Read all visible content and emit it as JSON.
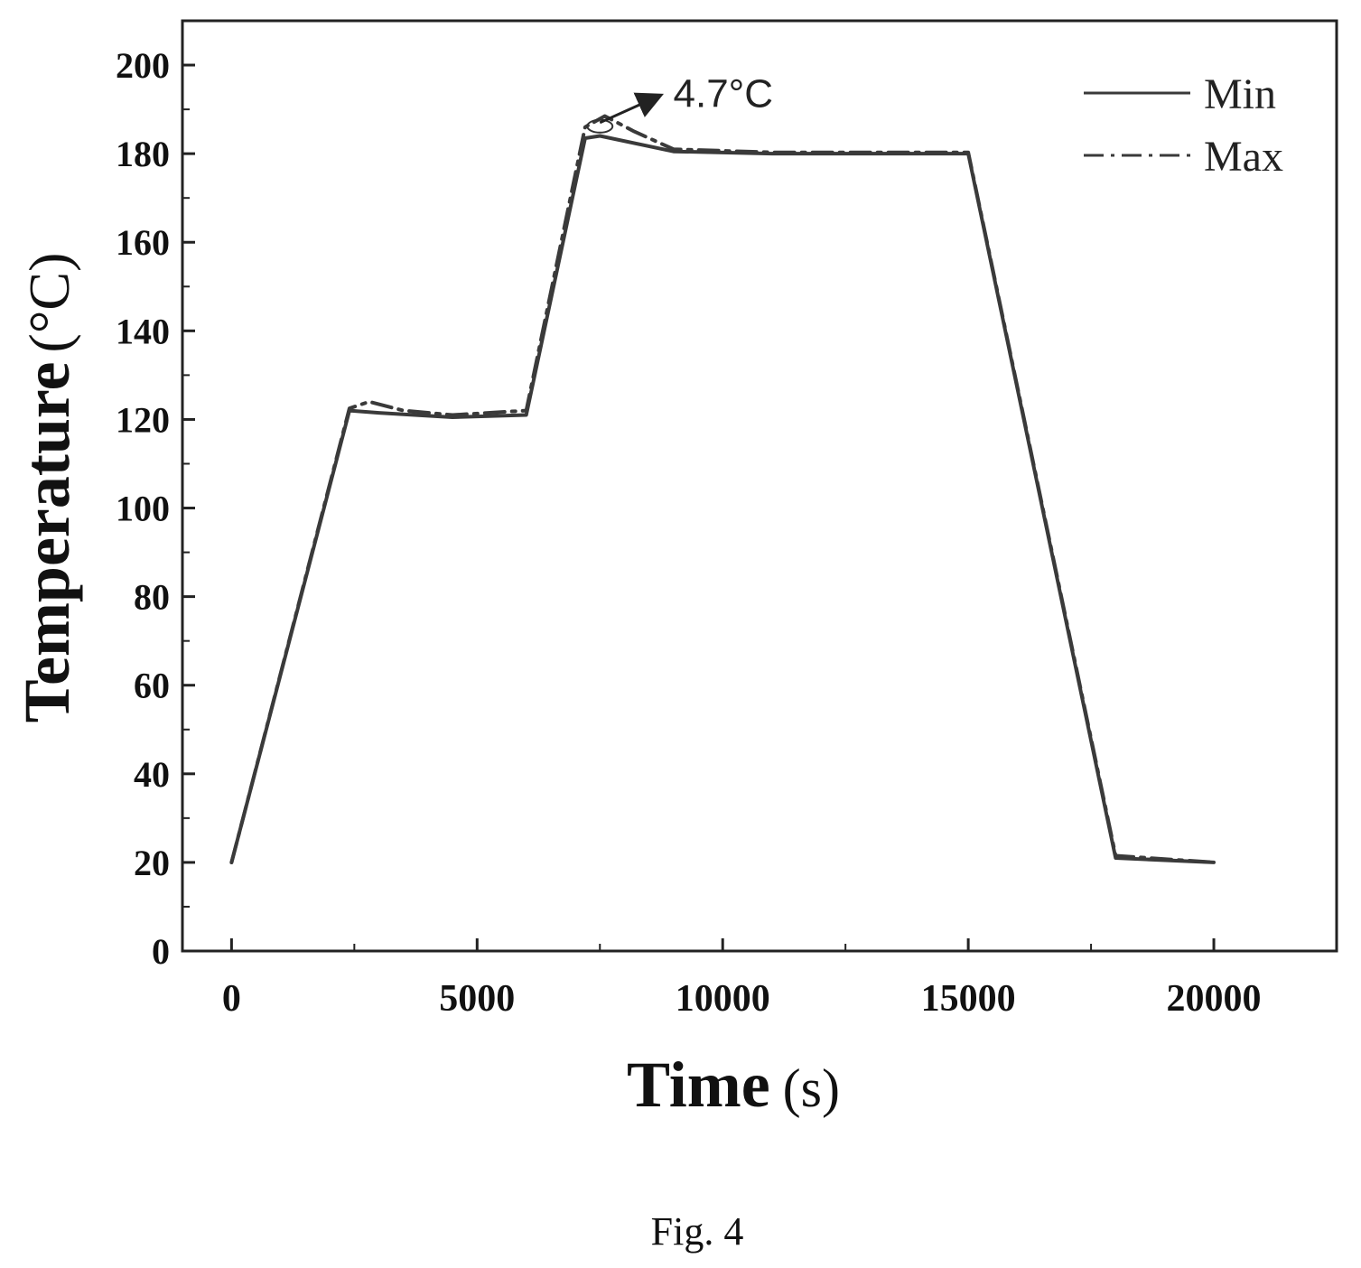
{
  "chart_data": {
    "type": "line",
    "xlabel": "Time",
    "xlabel_unit": "(s)",
    "ylabel": "Temperature",
    "ylabel_unit": "(°C)",
    "xlim": [
      -1000,
      22500
    ],
    "ylim": [
      0,
      210
    ],
    "x_ticks": [
      0,
      5000,
      10000,
      15000,
      20000
    ],
    "x_tick_labels": [
      "0",
      "5000",
      "10000",
      "15000",
      "20000"
    ],
    "y_ticks": [
      0,
      20,
      40,
      60,
      80,
      100,
      120,
      140,
      160,
      180,
      200
    ],
    "y_tick_labels": [
      "0",
      "20",
      "40",
      "60",
      "80",
      "100",
      "120",
      "140",
      "160",
      "180",
      "200"
    ],
    "grid": false,
    "legend": {
      "placement": "top-right",
      "entries": [
        {
          "name": "Min",
          "style": "solid"
        },
        {
          "name": "Max",
          "style": "dash-dot"
        }
      ]
    },
    "series": [
      {
        "name": "Min",
        "color": "#3a3a3a",
        "style": "solid",
        "points": [
          [
            0,
            20
          ],
          [
            2400,
            122
          ],
          [
            3000,
            121.5
          ],
          [
            4500,
            120.5
          ],
          [
            6000,
            121
          ],
          [
            7200,
            183.5
          ],
          [
            7500,
            184
          ],
          [
            9000,
            180.5
          ],
          [
            11000,
            180
          ],
          [
            15000,
            180
          ],
          [
            18000,
            21
          ],
          [
            20000,
            20
          ]
        ]
      },
      {
        "name": "Max",
        "color": "#3a3a3a",
        "style": "dash-dot",
        "points": [
          [
            0,
            20
          ],
          [
            2400,
            122.5
          ],
          [
            2800,
            124
          ],
          [
            3500,
            122
          ],
          [
            4500,
            121
          ],
          [
            6000,
            122
          ],
          [
            7200,
            186
          ],
          [
            7600,
            188.5
          ],
          [
            8200,
            185
          ],
          [
            9000,
            181
          ],
          [
            11000,
            180.3
          ],
          [
            15000,
            180.3
          ],
          [
            18000,
            21.5
          ],
          [
            20000,
            20
          ]
        ]
      }
    ],
    "annotations": [
      {
        "text": "4.7°C",
        "arrow_from": [
          7500,
          187
        ],
        "arrow_to": [
          8700,
          193
        ]
      }
    ]
  },
  "caption": "Fig. 4"
}
